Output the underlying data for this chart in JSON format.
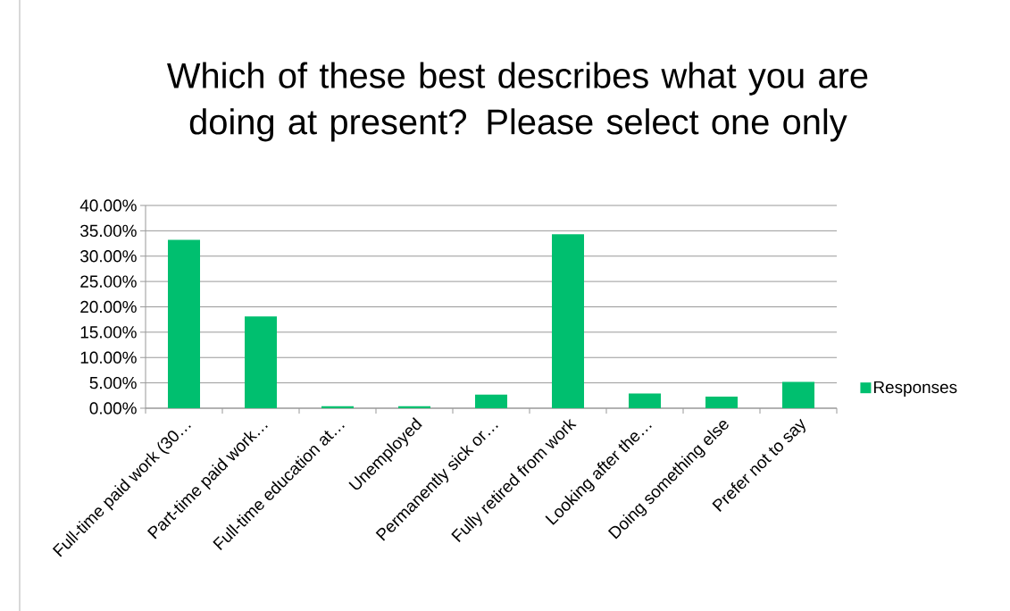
{
  "chart_data": {
    "type": "bar",
    "title": "Which of these best describes what you are doing at present? Please select one only",
    "categories": [
      "Full-time paid work (30…",
      "Part-time paid work…",
      "Full-time education at…",
      "Unemployed",
      "Permanently sick or…",
      "Fully retired from work",
      "Looking after the…",
      "Doing something else",
      "Prefer not to say"
    ],
    "series": [
      {
        "name": "Responses",
        "color": "#00bf6f",
        "values": [
          33.2,
          18.1,
          0.4,
          0.4,
          2.7,
          34.3,
          2.9,
          2.3,
          5.2
        ]
      }
    ],
    "ylim": [
      0,
      40
    ],
    "yticks": [
      {
        "value": 0,
        "label": "0.00%"
      },
      {
        "value": 5,
        "label": "5.00%"
      },
      {
        "value": 10,
        "label": "10.00%"
      },
      {
        "value": 15,
        "label": "15.00%"
      },
      {
        "value": 20,
        "label": "20.00%"
      },
      {
        "value": 25,
        "label": "25.00%"
      },
      {
        "value": 30,
        "label": "30.00%"
      },
      {
        "value": 35,
        "label": "35.00%"
      },
      {
        "value": 40,
        "label": "40.00%"
      }
    ],
    "grid": "y",
    "legend": "right"
  }
}
